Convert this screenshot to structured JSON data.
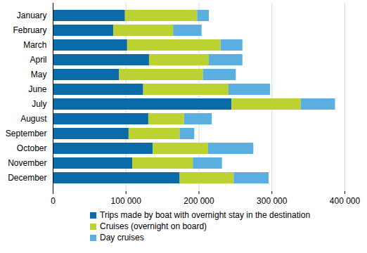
{
  "chart_data": {
    "type": "bar",
    "orientation": "horizontal",
    "stacked": true,
    "grid": true,
    "legend": "bottom",
    "categories": [
      "January",
      "February",
      "March",
      "April",
      "May",
      "June",
      "July",
      "August",
      "September",
      "October",
      "November",
      "December"
    ],
    "series": [
      {
        "name": "Trips made by boat with overnight stay in the destination",
        "color": "#0b6aa8",
        "values": [
          99000,
          83000,
          102000,
          132000,
          91000,
          124000,
          245000,
          131000,
          104000,
          137000,
          109000,
          174000
        ]
      },
      {
        "name": "Cruises (overnight on board)",
        "color": "#bcd232",
        "values": [
          99000,
          82000,
          128000,
          82000,
          115000,
          117000,
          95000,
          49000,
          70000,
          76000,
          83000,
          74000
        ]
      },
      {
        "name": "Day cruises",
        "color": "#5aaee0",
        "values": [
          16000,
          39000,
          30000,
          46000,
          45000,
          57000,
          47000,
          38000,
          20000,
          62000,
          40000,
          48000
        ]
      }
    ],
    "xlim": [
      0,
      400000
    ],
    "xticks": [
      0,
      {
        "value": 100000,
        "label": "100 000"
      },
      {
        "value": 200000,
        "label": "200 000"
      },
      {
        "value": 300000,
        "label": "300 000"
      },
      {
        "value": 400000,
        "label": "400 000"
      }
    ]
  }
}
